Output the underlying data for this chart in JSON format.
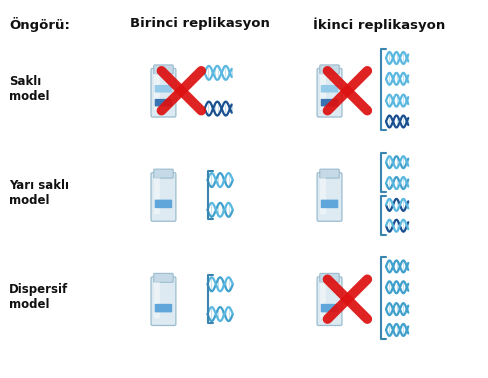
{
  "title_header": "Öngörü:",
  "col1_title": "Birinci replikasyon",
  "col2_title": "İkinci replikasyon",
  "row_labels": [
    "Saklı\nmodel",
    "Yarı saklı\nmodel",
    "Dispersif\nmodel"
  ],
  "bg_color": "#ffffff",
  "tube_body_color": "#ddeaf2",
  "tube_outline_color": "#9bbcce",
  "tube_cap_color": "#c5dae6",
  "band_heavy_color": "#2a6aad",
  "band_medium_color": "#55a0d8",
  "band_light_color": "#8ec8e8",
  "dna_dark_color": "#1a5090",
  "dna_light_color": "#5ab8e0",
  "dna_mixed_color": "#40a0cc",
  "cross_color": "#dd1111",
  "text_color": "#111111",
  "bracket_color": "#3a85b0",
  "header_fontsize": 9.5,
  "label_fontsize": 8.5,
  "col_fontsize": 9.5,
  "fig_w": 4.89,
  "fig_h": 3.78,
  "dpi": 100
}
